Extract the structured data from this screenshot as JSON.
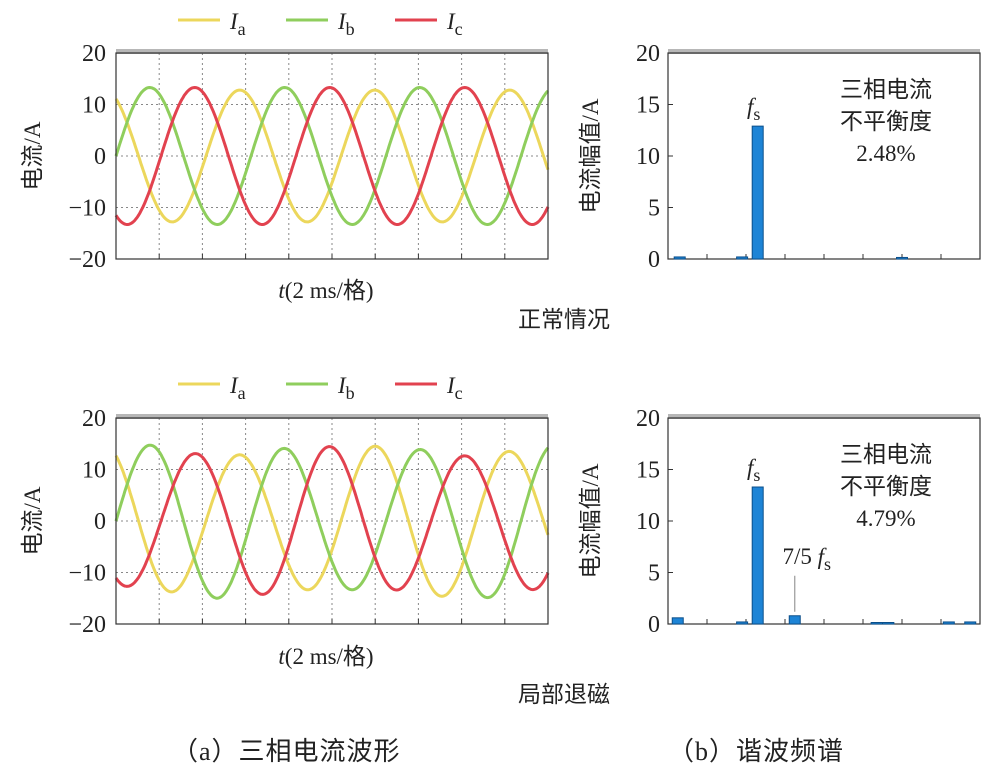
{
  "captions": {
    "a": "（a）三相电流波形",
    "b": "（b）谐波频谱"
  },
  "colors": {
    "Ia": "#ecd75c",
    "Ib": "#8fce5d",
    "Ic": "#e2424f",
    "bar": "#1d84d6",
    "bar_edge": "#0b4f8a"
  },
  "chart_data": [
    {
      "id": "wave-normal",
      "type": "line",
      "title": "正常情况",
      "xlabel_italic": "t",
      "xlabel": "(2 ms/格)",
      "ylabel": "电流/A",
      "ylim": [
        -20,
        20
      ],
      "yticks": [
        20,
        10,
        0,
        -10,
        -20
      ],
      "x": [
        0,
        20
      ],
      "grid": true,
      "legend": "top",
      "period_ms": 6.25,
      "series": [
        {
          "name": "I",
          "sub": "a",
          "key": "Ia",
          "amplitude": 12.8,
          "phase_deg": 120
        },
        {
          "name": "I",
          "sub": "b",
          "key": "Ib",
          "amplitude": 13.3,
          "phase_deg": 0
        },
        {
          "name": "I",
          "sub": "c",
          "key": "Ic",
          "amplitude": 13.3,
          "phase_deg": -120
        }
      ]
    },
    {
      "id": "wave-demag",
      "type": "line",
      "title": "局部退磁",
      "xlabel_italic": "t",
      "xlabel": "(2 ms/格)",
      "ylabel": "电流/A",
      "ylim": [
        -20,
        20
      ],
      "yticks": [
        20,
        10,
        0,
        -10,
        -20
      ],
      "x": [
        0,
        20
      ],
      "grid": true,
      "legend": "top",
      "period_ms": 6.25,
      "series": [
        {
          "name": "I",
          "sub": "a",
          "key": "Ia",
          "amplitude": 13.8,
          "phase_deg": 120,
          "mod": 0.07
        },
        {
          "name": "I",
          "sub": "b",
          "key": "Ib",
          "amplitude": 14.2,
          "phase_deg": 0,
          "mod": 0.06
        },
        {
          "name": "I",
          "sub": "c",
          "key": "Ic",
          "amplitude": 13.6,
          "phase_deg": -120,
          "mod": 0.07
        }
      ]
    },
    {
      "id": "spec-normal",
      "type": "bar",
      "ylabel": "电流幅值/A",
      "ylim": [
        0,
        20
      ],
      "yticks": [
        20,
        15,
        10,
        5,
        0
      ],
      "xdivisions": 8,
      "bars": [
        {
          "pos": 0.3,
          "value": 0.2
        },
        {
          "pos": 1.9,
          "value": 0.2
        },
        {
          "pos": 2.3,
          "value": 12.9
        },
        {
          "pos": 6.0,
          "value": 0.15
        }
      ],
      "labels": [
        {
          "text": "f",
          "sub": "s",
          "bar": 2
        }
      ],
      "annotation": [
        "三相电流",
        "不平衡度",
        "2.48%"
      ]
    },
    {
      "id": "spec-demag",
      "type": "bar",
      "ylabel": "电流幅值/A",
      "ylim": [
        0,
        20
      ],
      "yticks": [
        20,
        15,
        10,
        5,
        0
      ],
      "xdivisions": 8,
      "bars": [
        {
          "pos": 0.25,
          "value": 0.6
        },
        {
          "pos": 1.9,
          "value": 0.2
        },
        {
          "pos": 2.3,
          "value": 13.3
        },
        {
          "pos": 3.25,
          "value": 0.8
        },
        {
          "pos": 5.35,
          "value": 0.1
        },
        {
          "pos": 5.65,
          "value": 0.1
        },
        {
          "pos": 7.2,
          "value": 0.2
        },
        {
          "pos": 7.75,
          "value": 0.2
        }
      ],
      "labels": [
        {
          "text": "f",
          "sub": "s",
          "bar": 2
        },
        {
          "text": "7/5 ",
          "text_italic": "f",
          "sub": "s",
          "bar": 3
        }
      ],
      "annotation": [
        "三相电流",
        "不平衡度",
        "4.79%"
      ]
    }
  ]
}
